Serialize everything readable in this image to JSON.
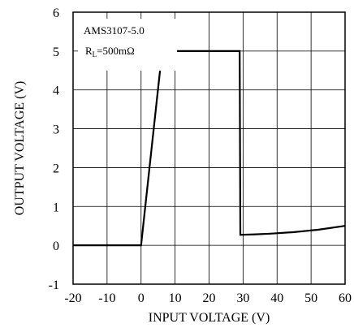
{
  "chart_data": {
    "type": "line",
    "title": "",
    "xlabel": "INPUT VOLTAGE (V)",
    "ylabel": "OUTPUT VOLTAGE (V)",
    "xlim": [
      -20,
      60
    ],
    "ylim": [
      -1,
      6
    ],
    "xticks": [
      "-20",
      "-10",
      "0",
      "10",
      "20",
      "30",
      "40",
      "50",
      "60"
    ],
    "yticks": [
      "-1",
      "0",
      "1",
      "2",
      "3",
      "4",
      "5",
      "6"
    ],
    "grid": true,
    "annotation": {
      "part": "AMS3107-5.0",
      "load_main": "R",
      "load_sub": "L",
      "load_value": "=500mΩ"
    },
    "series": [
      {
        "x": [
          -20,
          0,
          6.2,
          29,
          29.2,
          33,
          38,
          45,
          52,
          60
        ],
        "y": [
          0,
          0,
          5,
          5,
          0.27,
          0.28,
          0.3,
          0.34,
          0.4,
          0.5
        ]
      }
    ]
  }
}
